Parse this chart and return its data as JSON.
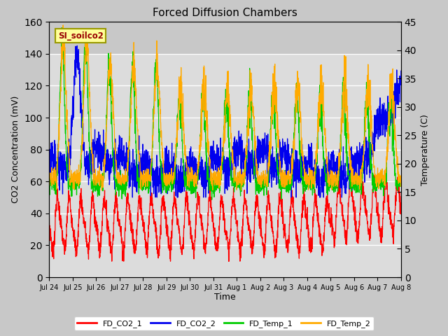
{
  "title": "Forced Diffusion Chambers",
  "xlabel": "Time",
  "ylabel_left": "CO2 Concentration (mV)",
  "ylabel_right": "Temperature (C)",
  "annotation": "SI_soilco2",
  "ylim_left": [
    0,
    160
  ],
  "ylim_right": [
    0,
    45
  ],
  "yticks_left": [
    0,
    20,
    40,
    60,
    80,
    100,
    120,
    140,
    160
  ],
  "yticks_right": [
    0,
    5,
    10,
    15,
    20,
    25,
    30,
    35,
    40,
    45
  ],
  "legend_labels": [
    "FD_CO2_1",
    "FD_CO2_2",
    "FD_Temp_1",
    "FD_Temp_2"
  ],
  "line_colors": [
    "#ff0000",
    "#0000ee",
    "#00cc00",
    "#ffaa00"
  ],
  "x_tick_labels": [
    "Jul 24",
    "Jul 25",
    "Jul 26",
    "Jul 27",
    "Jul 28",
    "Jul 29",
    "Jul 30",
    "Jul 31",
    "Aug 1",
    "Aug 2",
    "Aug 3",
    "Aug 4",
    "Aug 5",
    "Aug 6",
    "Aug 7",
    "Aug 8"
  ],
  "n_days": 15,
  "pts_per_day": 144,
  "seed": 7
}
